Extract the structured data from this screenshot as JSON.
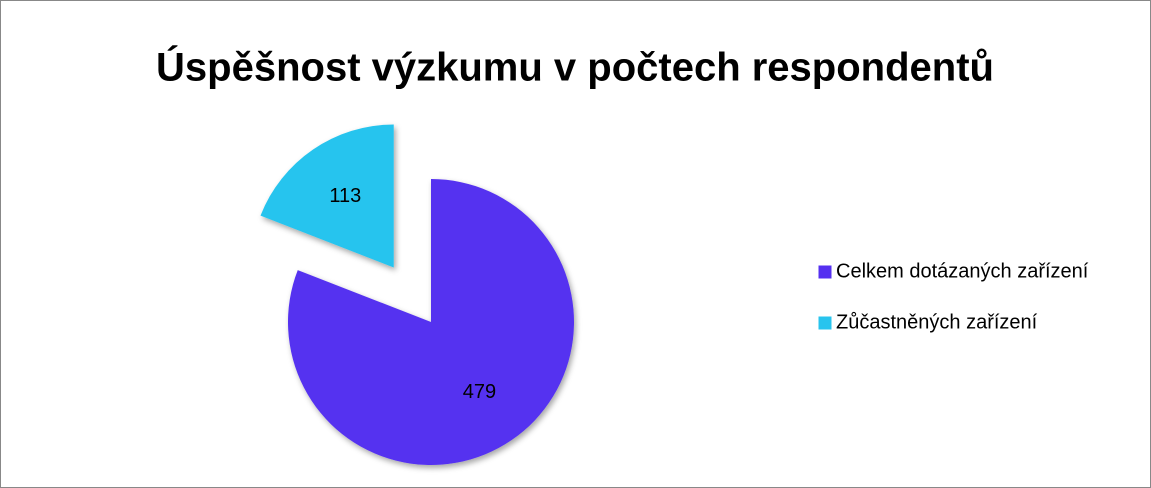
{
  "chart_data": {
    "type": "pie",
    "title": "Úspěšnost výzkumu v počtech respondentů",
    "categories": [
      "Celkem dotázaných zařízení",
      "Zůčastněných zařízení"
    ],
    "values": [
      479,
      113
    ],
    "colors": [
      "#5530f0",
      "#28c4ee"
    ],
    "exploded": [
      false,
      true
    ],
    "legend": "right"
  }
}
